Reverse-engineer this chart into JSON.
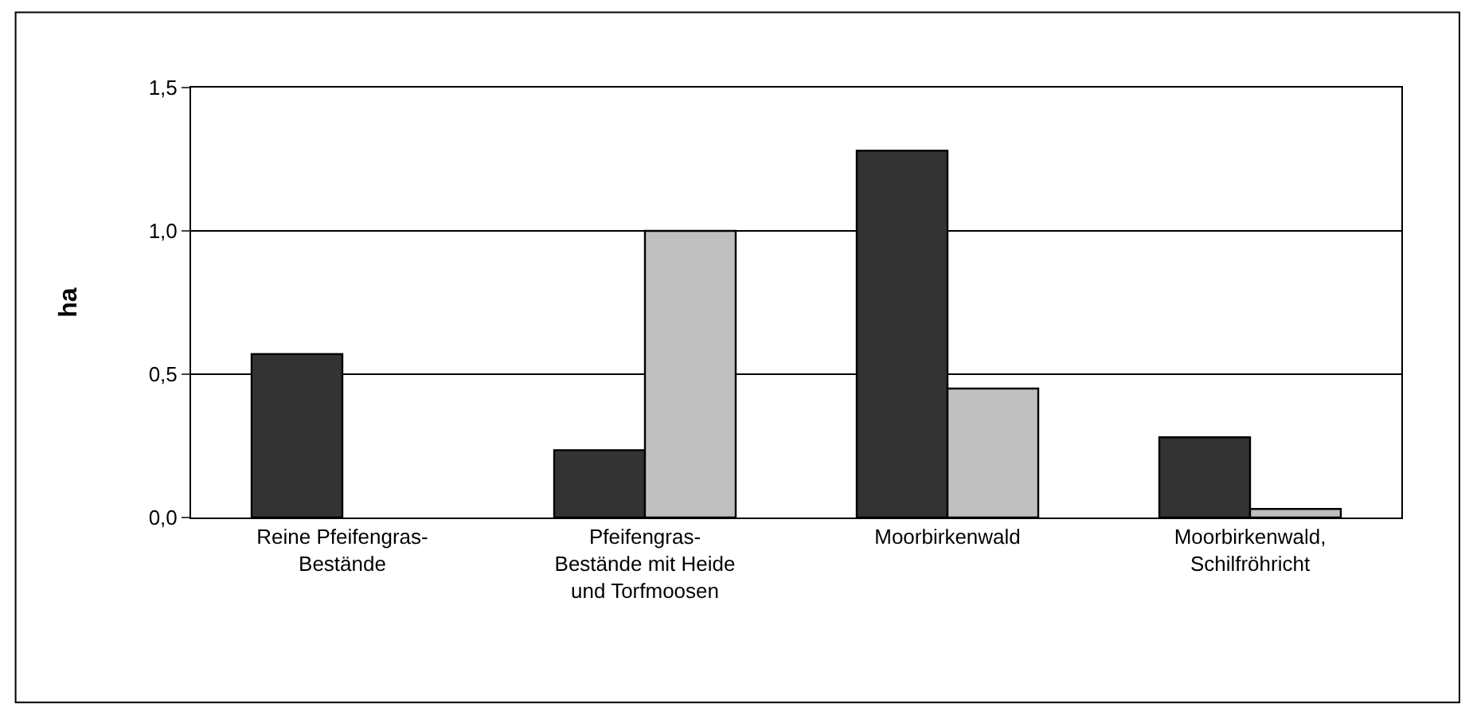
{
  "chart_data": {
    "type": "bar",
    "ylabel": "ha",
    "categories": [
      "Reine Pfeifengras-Bestände",
      "Pfeifengras-Bestände mit Heide und Torfmoosen",
      "Moorbirkenwald",
      "Moorbirkenwald, Schilfröhricht"
    ],
    "series": [
      {
        "color": "#333333",
        "values": [
          0.57,
          0.235,
          1.28,
          0.28
        ]
      },
      {
        "color": "#c0c0c0",
        "values": [
          null,
          1.0,
          0.45,
          0.03
        ]
      }
    ],
    "ylim": [
      0,
      1.5
    ],
    "yticks": [
      {
        "value": 0,
        "label": "0,0"
      },
      {
        "value": 0.5,
        "label": "0,5"
      },
      {
        "value": 1.0,
        "label": "1,0"
      },
      {
        "value": 1.5,
        "label": "1,5"
      }
    ],
    "grid": "y",
    "legend": false
  }
}
